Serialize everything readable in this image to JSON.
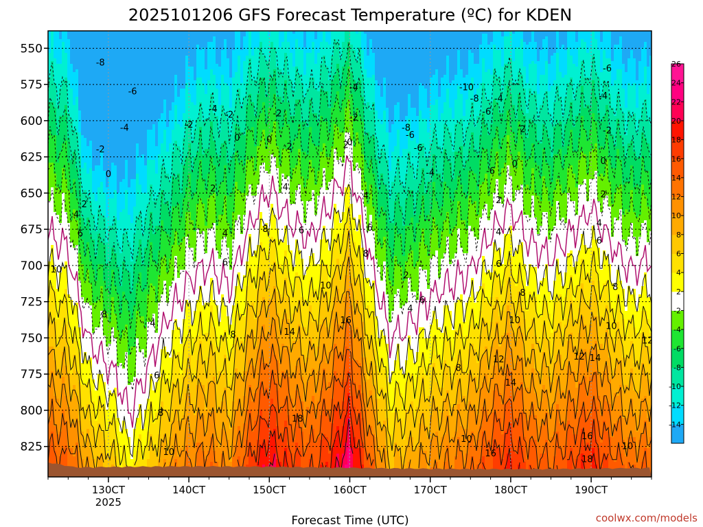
{
  "chart_data": {
    "type": "heatmap",
    "title": "2025101206 GFS Forecast Temperature (ºC) for KDEN",
    "xlabel": "Forecast Time (UTC)",
    "ylabel": "",
    "credit": "coolwx.com/models",
    "x_ticks": [
      {
        "day": 13,
        "label": "130CT",
        "sub": "2025"
      },
      {
        "day": 14,
        "label": "140CT",
        "sub": ""
      },
      {
        "day": 15,
        "label": "150CT",
        "sub": ""
      },
      {
        "day": 16,
        "label": "160CT",
        "sub": ""
      },
      {
        "day": 17,
        "label": "170CT",
        "sub": ""
      },
      {
        "day": 18,
        "label": "180CT",
        "sub": ""
      },
      {
        "day": 19,
        "label": "190CT",
        "sub": ""
      }
    ],
    "xlim_days": [
      12.25,
      19.75
    ],
    "y_ticks": [
      550,
      575,
      600,
      625,
      650,
      675,
      700,
      725,
      750,
      775,
      800,
      825
    ],
    "ylim_hpa": [
      538,
      846
    ],
    "colorbar": {
      "levels": [
        -16,
        -14,
        -12,
        -10,
        -8,
        -6,
        -4,
        -2,
        2,
        4,
        6,
        8,
        10,
        12,
        14,
        16,
        18,
        20,
        22,
        24,
        26,
        28
      ],
      "tick_labels": [
        "-14",
        "-12",
        "-10",
        "-8",
        "-6",
        "-4",
        "-2",
        "2",
        "4",
        "6",
        "8",
        "10",
        "12",
        "14",
        "16",
        "18",
        "20",
        "22",
        "24",
        "26"
      ],
      "colors": [
        "#1ea9f5",
        "#00dcff",
        "#00f0d2",
        "#00e6a0",
        "#00dc64",
        "#1ee632",
        "#64f000",
        "#ffffff",
        "#ffff00",
        "#ffe100",
        "#ffc800",
        "#ffaa00",
        "#ff9100",
        "#ff7300",
        "#ff5a00",
        "#ff3c00",
        "#ff1400",
        "#ff0055",
        "#ff0080",
        "#ff1493"
      ]
    },
    "temperature_profile": {
      "description_fields": [
        "day",
        "t_surface",
        "lapse_c_per_100hpa"
      ],
      "points": [
        [
          12.25,
          14,
          6.5
        ],
        [
          12.5,
          13,
          6.5
        ],
        [
          12.75,
          8,
          7.5
        ],
        [
          13.0,
          6,
          7.3
        ],
        [
          13.1,
          5,
          7.0
        ],
        [
          13.25,
          2,
          6.0
        ],
        [
          13.5,
          5,
          6.2
        ],
        [
          13.75,
          9,
          6.8
        ],
        [
          14.0,
          11,
          6.6
        ],
        [
          14.25,
          12,
          6.5
        ],
        [
          14.5,
          10,
          6.2
        ],
        [
          14.75,
          15,
          6.8
        ],
        [
          15.0,
          19,
          7.3
        ],
        [
          15.25,
          16,
          7.0
        ],
        [
          15.5,
          14,
          6.7
        ],
        [
          15.75,
          17,
          7.0
        ],
        [
          16.0,
          21,
          7.4
        ],
        [
          16.25,
          13,
          6.8
        ],
        [
          16.5,
          7,
          6.4
        ],
        [
          16.75,
          8,
          6.5
        ],
        [
          17.0,
          10,
          6.6
        ],
        [
          17.25,
          11,
          6.7
        ],
        [
          17.5,
          12,
          6.8
        ],
        [
          17.75,
          15,
          7.0
        ],
        [
          18.0,
          17,
          7.1
        ],
        [
          18.25,
          14,
          6.9
        ],
        [
          18.5,
          13,
          6.8
        ],
        [
          18.75,
          15,
          7.0
        ],
        [
          19.0,
          17,
          7.1
        ],
        [
          19.25,
          14,
          6.9
        ],
        [
          19.5,
          12,
          6.8
        ],
        [
          19.75,
          13,
          6.8
        ]
      ]
    },
    "contour_labels": [
      {
        "text": "-8",
        "day": 12.9,
        "p": 560
      },
      {
        "text": "-6",
        "day": 13.3,
        "p": 580
      },
      {
        "text": "-4",
        "day": 14.3,
        "p": 592
      },
      {
        "text": "-2",
        "day": 12.9,
        "p": 620
      },
      {
        "text": "-4",
        "day": 13.2,
        "p": 605
      },
      {
        "text": "-2",
        "day": 14.0,
        "p": 603
      },
      {
        "text": "0",
        "day": 13.0,
        "p": 637
      },
      {
        "text": "2",
        "day": 12.7,
        "p": 658
      },
      {
        "text": "4",
        "day": 12.6,
        "p": 665
      },
      {
        "text": "6",
        "day": 12.65,
        "p": 678
      },
      {
        "text": "10",
        "day": 12.35,
        "p": 703
      },
      {
        "text": "8",
        "day": 12.95,
        "p": 734
      },
      {
        "text": "4",
        "day": 13.55,
        "p": 740
      },
      {
        "text": "6",
        "day": 13.6,
        "p": 776
      },
      {
        "text": "8",
        "day": 13.65,
        "p": 802
      },
      {
        "text": "10",
        "day": 13.75,
        "p": 829
      },
      {
        "text": "2",
        "day": 14.3,
        "p": 647
      },
      {
        "text": "4",
        "day": 14.45,
        "p": 678
      },
      {
        "text": "6",
        "day": 14.45,
        "p": 698
      },
      {
        "text": "8",
        "day": 14.55,
        "p": 748
      },
      {
        "text": "-2",
        "day": 14.5,
        "p": 596
      },
      {
        "text": "0",
        "day": 14.6,
        "p": 612
      },
      {
        "text": "0",
        "day": 15.0,
        "p": 613
      },
      {
        "text": "2",
        "day": 15.25,
        "p": 618
      },
      {
        "text": "4",
        "day": 15.2,
        "p": 646
      },
      {
        "text": "8",
        "day": 14.95,
        "p": 675
      },
      {
        "text": "6",
        "day": 15.4,
        "p": 676
      },
      {
        "text": "14",
        "day": 15.25,
        "p": 746
      },
      {
        "text": "18",
        "day": 15.35,
        "p": 806
      },
      {
        "text": "10",
        "day": 15.7,
        "p": 714
      },
      {
        "text": "-2",
        "day": 15.1,
        "p": 595
      },
      {
        "text": "-4",
        "day": 16.05,
        "p": 577
      },
      {
        "text": "-2",
        "day": 16.05,
        "p": 598
      },
      {
        "text": "2",
        "day": 15.95,
        "p": 617
      },
      {
        "text": "0",
        "day": 16.0,
        "p": 615
      },
      {
        "text": "4",
        "day": 16.2,
        "p": 652
      },
      {
        "text": "6",
        "day": 16.25,
        "p": 674
      },
      {
        "text": "8",
        "day": 16.2,
        "p": 692
      },
      {
        "text": "16",
        "day": 15.95,
        "p": 738
      },
      {
        "text": "-6",
        "day": 16.75,
        "p": 610
      },
      {
        "text": "-6",
        "day": 16.85,
        "p": 619
      },
      {
        "text": "-8",
        "day": 16.7,
        "p": 605
      },
      {
        "text": "-10",
        "day": 17.45,
        "p": 577
      },
      {
        "text": "-8",
        "day": 17.55,
        "p": 585
      },
      {
        "text": "-6",
        "day": 17.7,
        "p": 594
      },
      {
        "text": "-4",
        "day": 17.85,
        "p": 585
      },
      {
        "text": "-6",
        "day": 17.75,
        "p": 635
      },
      {
        "text": "-4",
        "day": 17.0,
        "p": 636
      },
      {
        "text": "2",
        "day": 16.7,
        "p": 707
      },
      {
        "text": "4",
        "day": 16.75,
        "p": 730
      },
      {
        "text": "6",
        "day": 16.9,
        "p": 724
      },
      {
        "text": "8",
        "day": 17.35,
        "p": 771
      },
      {
        "text": "10",
        "day": 17.45,
        "p": 820
      },
      {
        "text": "2",
        "day": 17.85,
        "p": 655
      },
      {
        "text": "4",
        "day": 17.85,
        "p": 677
      },
      {
        "text": "6",
        "day": 17.85,
        "p": 699
      },
      {
        "text": "8",
        "day": 18.15,
        "p": 719
      },
      {
        "text": "10",
        "day": 18.05,
        "p": 738
      },
      {
        "text": "12",
        "day": 17.85,
        "p": 765
      },
      {
        "text": "14",
        "day": 18.0,
        "p": 781
      },
      {
        "text": "16",
        "day": 17.75,
        "p": 830
      },
      {
        "text": "0",
        "day": 18.05,
        "p": 630
      },
      {
        "text": "2",
        "day": 18.15,
        "p": 606
      },
      {
        "text": "-6",
        "day": 19.2,
        "p": 564
      },
      {
        "text": "-4",
        "day": 19.15,
        "p": 583
      },
      {
        "text": "-2",
        "day": 19.2,
        "p": 607
      },
      {
        "text": "0",
        "day": 19.15,
        "p": 628
      },
      {
        "text": "2",
        "day": 19.15,
        "p": 651
      },
      {
        "text": "4",
        "day": 19.1,
        "p": 671
      },
      {
        "text": "6",
        "day": 19.1,
        "p": 683
      },
      {
        "text": "8",
        "day": 19.3,
        "p": 715
      },
      {
        "text": "10",
        "day": 19.25,
        "p": 742
      },
      {
        "text": "12",
        "day": 19.7,
        "p": 752
      },
      {
        "text": "12",
        "day": 18.85,
        "p": 763
      },
      {
        "text": "14",
        "day": 19.05,
        "p": 764
      },
      {
        "text": "16",
        "day": 18.95,
        "p": 818
      },
      {
        "text": "18",
        "day": 18.95,
        "p": 834
      },
      {
        "text": "10",
        "day": 19.45,
        "p": 825
      }
    ],
    "grid": true
  }
}
